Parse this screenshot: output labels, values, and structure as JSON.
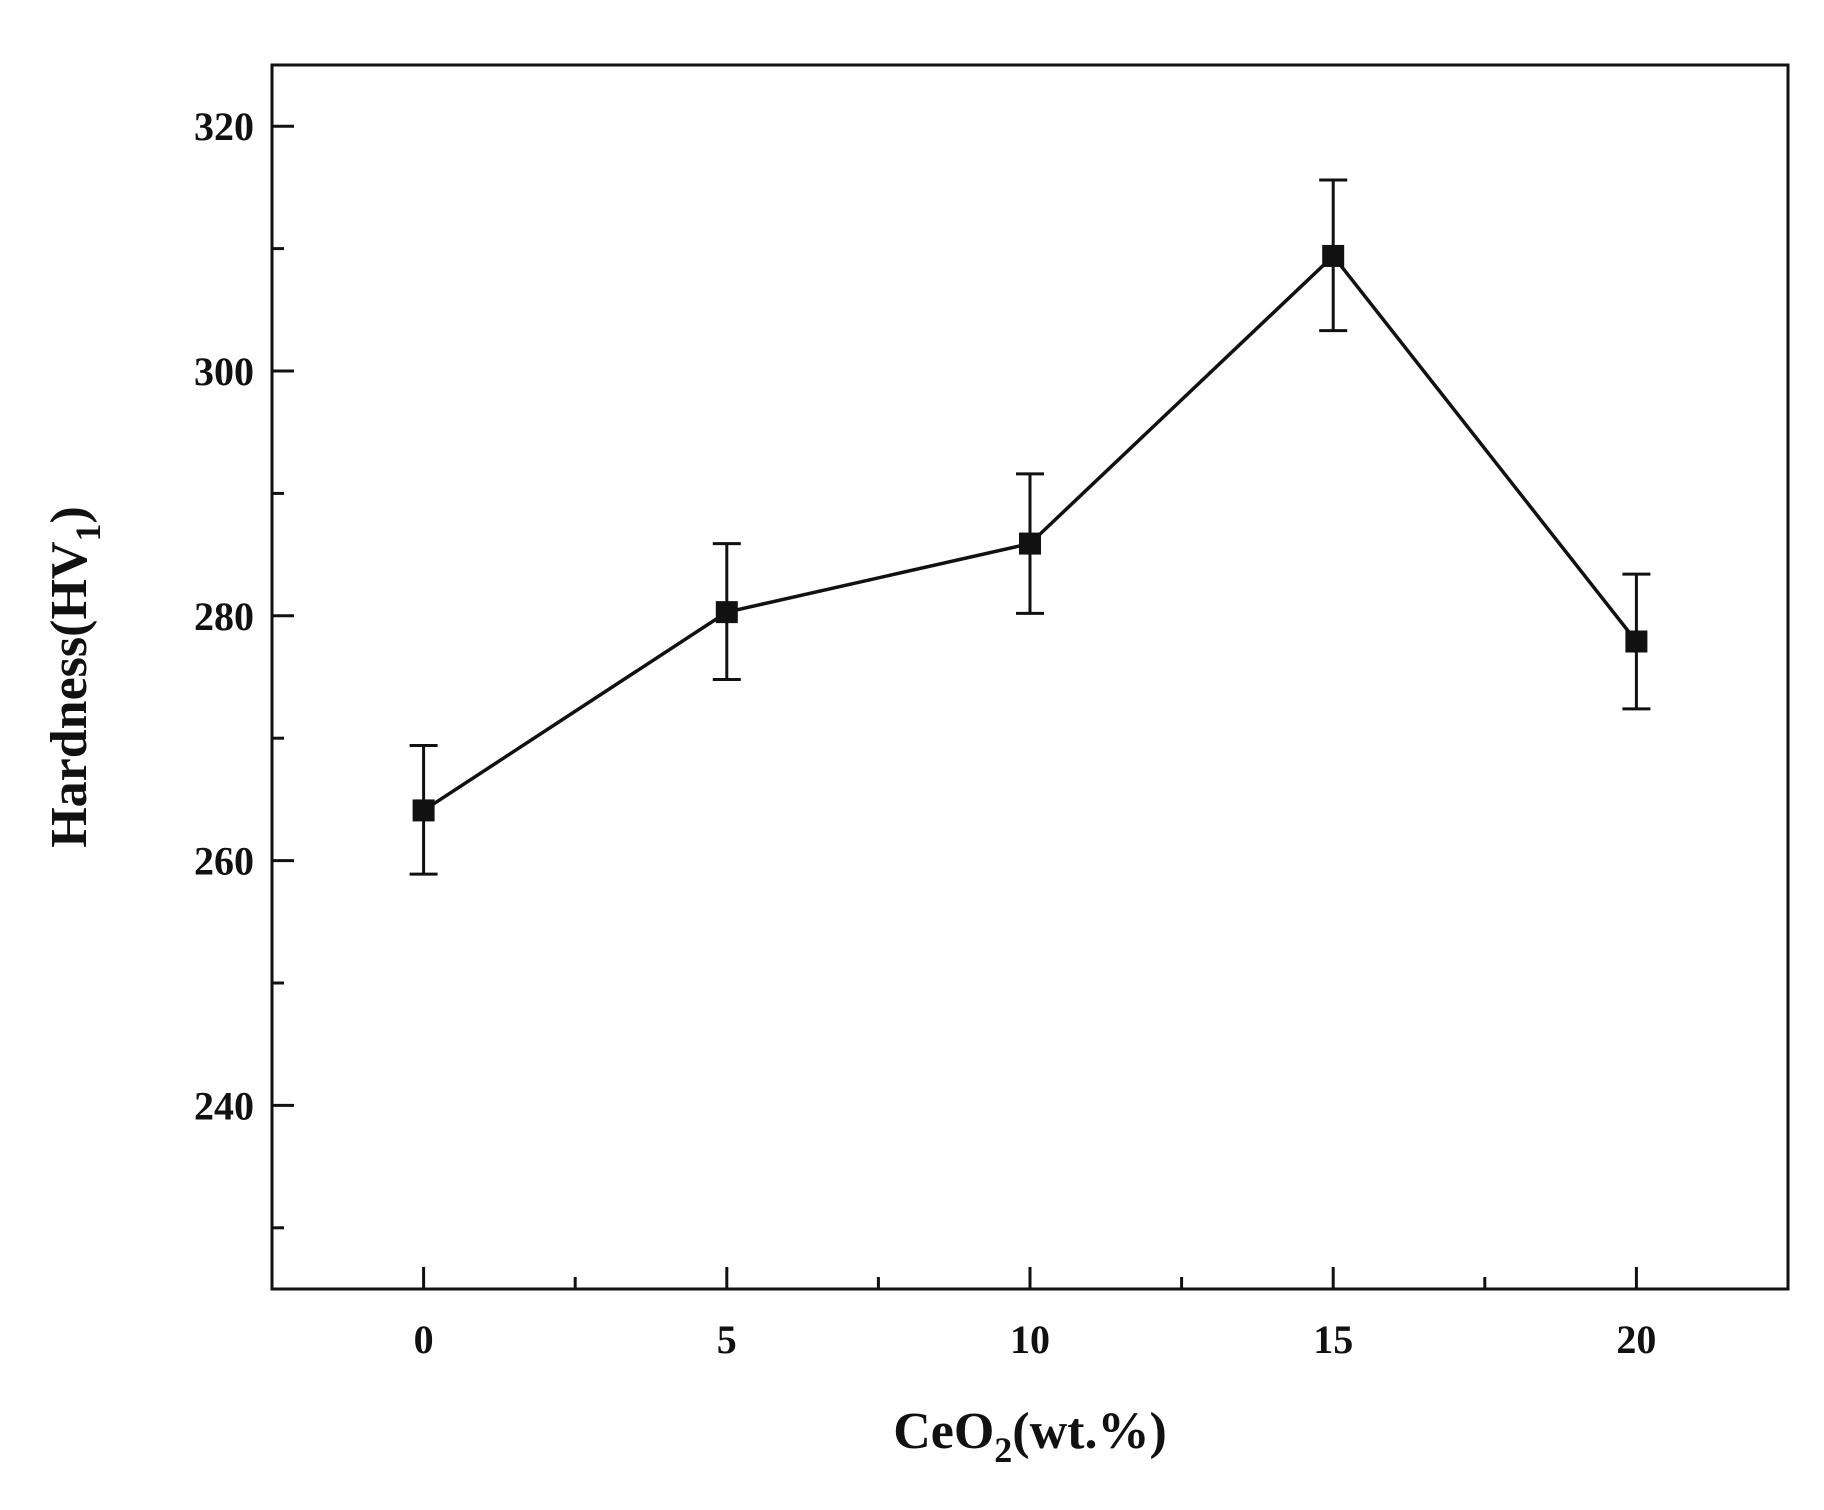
{
  "chart_data": {
    "type": "line",
    "title": "",
    "xlabel_parts": [
      "CeO",
      "2",
      "(wt.%)"
    ],
    "ylabel_parts": [
      "Hardness(HV",
      "1",
      ")"
    ],
    "xlim": [
      -2.5,
      22.5
    ],
    "ylim": [
      225,
      325
    ],
    "x_ticks": [
      0,
      5,
      10,
      15,
      20
    ],
    "x_tick_labels": [
      "0",
      "5",
      "10",
      "15",
      "20"
    ],
    "x_minor_ticks": [
      2.5,
      7.5,
      12.5,
      17.5
    ],
    "y_ticks": [
      240,
      260,
      280,
      300,
      320
    ],
    "y_tick_labels": [
      "240",
      "260",
      "280",
      "300",
      "320"
    ],
    "y_minor_ticks": [
      230,
      250,
      270,
      290,
      310
    ],
    "grid": false,
    "series": [
      {
        "x": [
          0,
          5,
          10,
          15,
          20
        ],
        "y": [
          264.1,
          280.3,
          285.9,
          309.4,
          277.9
        ],
        "err_low": [
          258.9,
          274.8,
          280.2,
          303.3,
          272.4
        ],
        "err_high": [
          269.4,
          285.9,
          291.6,
          315.6,
          283.4
        ],
        "marker": "square",
        "color": "#111111"
      }
    ]
  }
}
